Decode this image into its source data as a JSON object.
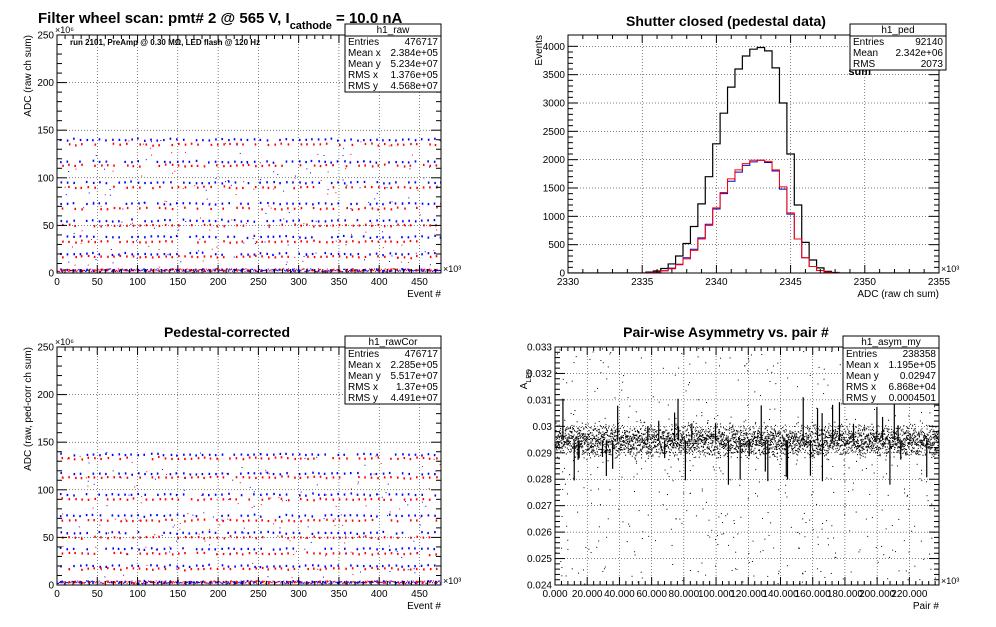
{
  "page_title": {
    "prefix": "Filter wheel scan: pmt#   2 @   565 V, I",
    "subscript": "cathode",
    "suffix": "  = 10.0 nA"
  },
  "run_info": "run 2101, PreAmp @ 0.30 MΩ, LED flash @  120 Hz",
  "colors": {
    "on": "#0000ff",
    "off": "#ff0000",
    "sum": "#000000",
    "ped_on": "#0000cc",
    "ped_off": "#ff0000"
  },
  "chart_data": [
    {
      "id": "raw",
      "type": "scatter",
      "title": "",
      "xlabel": "Event #",
      "ylabel": "ADC (raw ch sum)",
      "x_multiplier": "×10³",
      "y_multiplier": "×10⁶",
      "xlim": [
        0,
        476.7
      ],
      "ylim": [
        0,
        250
      ],
      "xticks": [
        0,
        50,
        100,
        150,
        200,
        250,
        300,
        350,
        400,
        450
      ],
      "yticks": [
        0,
        50,
        100,
        150,
        200,
        250
      ],
      "legend": [
        "on",
        "off"
      ],
      "band_levels_on": [
        3,
        20,
        38,
        55,
        73,
        95,
        117,
        140
      ],
      "band_levels_off": [
        3,
        17,
        33,
        50,
        68,
        90,
        113,
        135
      ],
      "stats": {
        "name": "h1_raw",
        "rows": [
          [
            "Entries",
            "476717"
          ],
          [
            "Mean x",
            "2.384e+05"
          ],
          [
            "Mean y",
            "5.234e+07"
          ],
          [
            "RMS x",
            "1.376e+05"
          ],
          [
            "RMS y",
            "4.568e+07"
          ]
        ]
      }
    },
    {
      "id": "ped",
      "type": "line",
      "title": "Shutter closed (pedestal data)",
      "xlabel": "ADC (raw ch sum)",
      "ylabel": "Events",
      "x_multiplier": "×10³",
      "xlim": [
        2330,
        2355
      ],
      "ylim": [
        0,
        4200
      ],
      "xticks": [
        2330,
        2335,
        2340,
        2345,
        2350,
        2355
      ],
      "yticks": [
        0,
        500,
        1000,
        1500,
        2000,
        2500,
        3000,
        3500,
        4000
      ],
      "legend": [
        "on",
        "off",
        "sum"
      ],
      "x": [
        2335.5,
        2336.0,
        2336.5,
        2337.0,
        2337.5,
        2338.0,
        2338.5,
        2339.0,
        2339.5,
        2340.0,
        2340.5,
        2341.0,
        2341.5,
        2342.0,
        2342.5,
        2343.0,
        2343.5,
        2344.0,
        2344.5,
        2345.0,
        2345.5,
        2346.0,
        2346.5,
        2347.0,
        2347.5,
        2348.0
      ],
      "series": [
        {
          "name": "sum",
          "values": [
            15,
            35,
            80,
            160,
            300,
            520,
            820,
            1220,
            1700,
            2280,
            2820,
            3280,
            3600,
            3830,
            3950,
            3980,
            3920,
            3620,
            3000,
            2100,
            1200,
            540,
            230,
            90,
            30,
            10
          ]
        },
        {
          "name": "on",
          "values": [
            8,
            18,
            40,
            85,
            155,
            270,
            420,
            620,
            860,
            1130,
            1400,
            1620,
            1780,
            1900,
            1960,
            1990,
            1950,
            1800,
            1480,
            1040,
            600,
            270,
            115,
            45,
            15,
            5
          ]
        },
        {
          "name": "off",
          "values": [
            7,
            17,
            40,
            75,
            145,
            250,
            400,
            600,
            840,
            1150,
            1420,
            1660,
            1820,
            1930,
            1990,
            1990,
            1970,
            1820,
            1520,
            1060,
            600,
            270,
            115,
            45,
            15,
            5
          ]
        }
      ],
      "stats": {
        "name": "h1_ped",
        "rows": [
          [
            "Entries",
            "92140"
          ],
          [
            "Mean",
            "2.342e+06"
          ],
          [
            "RMS",
            "2073"
          ]
        ]
      }
    },
    {
      "id": "rawcor",
      "type": "scatter",
      "title": "Pedestal-corrected",
      "xlabel": "Event #",
      "ylabel": "ADC (raw, ped-corr ch sum)",
      "x_multiplier": "×10³",
      "y_multiplier": "×10⁶",
      "xlim": [
        0,
        476.7
      ],
      "ylim": [
        0,
        250
      ],
      "xticks": [
        0,
        50,
        100,
        150,
        200,
        250,
        300,
        350,
        400,
        450
      ],
      "yticks": [
        0,
        50,
        100,
        150,
        200,
        250
      ],
      "legend": [
        "on",
        "off"
      ],
      "band_levels_on": [
        3,
        20,
        38,
        55,
        73,
        95,
        117,
        137
      ],
      "band_levels_off": [
        3,
        17,
        33,
        50,
        68,
        90,
        113,
        133
      ],
      "stats": {
        "name": "h1_rawCor",
        "rows": [
          [
            "Entries",
            "476717"
          ],
          [
            "Mean x",
            "2.285e+05"
          ],
          [
            "Mean y",
            "5.517e+07"
          ],
          [
            "RMS x",
            "1.37e+05"
          ],
          [
            "RMS y",
            "4.491e+07"
          ]
        ]
      }
    },
    {
      "id": "asym",
      "type": "scatter",
      "title": "Pair-wise Asymmetry vs. pair #",
      "xlabel": "Pair #",
      "ylabel": "A_LED",
      "x_multiplier": "×10³",
      "xlim": [
        0,
        238.4
      ],
      "ylim": [
        0.024,
        0.033
      ],
      "xticks": [
        0,
        20,
        40,
        60,
        80,
        100,
        120,
        140,
        160,
        180,
        200,
        220
      ],
      "yticks": [
        0.024,
        0.025,
        0.026,
        0.027,
        0.028,
        0.029,
        0.03,
        0.031,
        0.032,
        0.033
      ],
      "core_mean": 0.02947,
      "core_rms": 0.0004501,
      "stats": {
        "name": "h1_asym_my",
        "rows": [
          [
            "Entries",
            "238358"
          ],
          [
            "Mean x",
            "1.195e+05"
          ],
          [
            "Mean y",
            "0.02947"
          ],
          [
            "RMS x",
            "6.868e+04"
          ],
          [
            "RMS y",
            "0.0004501"
          ]
        ]
      }
    }
  ]
}
